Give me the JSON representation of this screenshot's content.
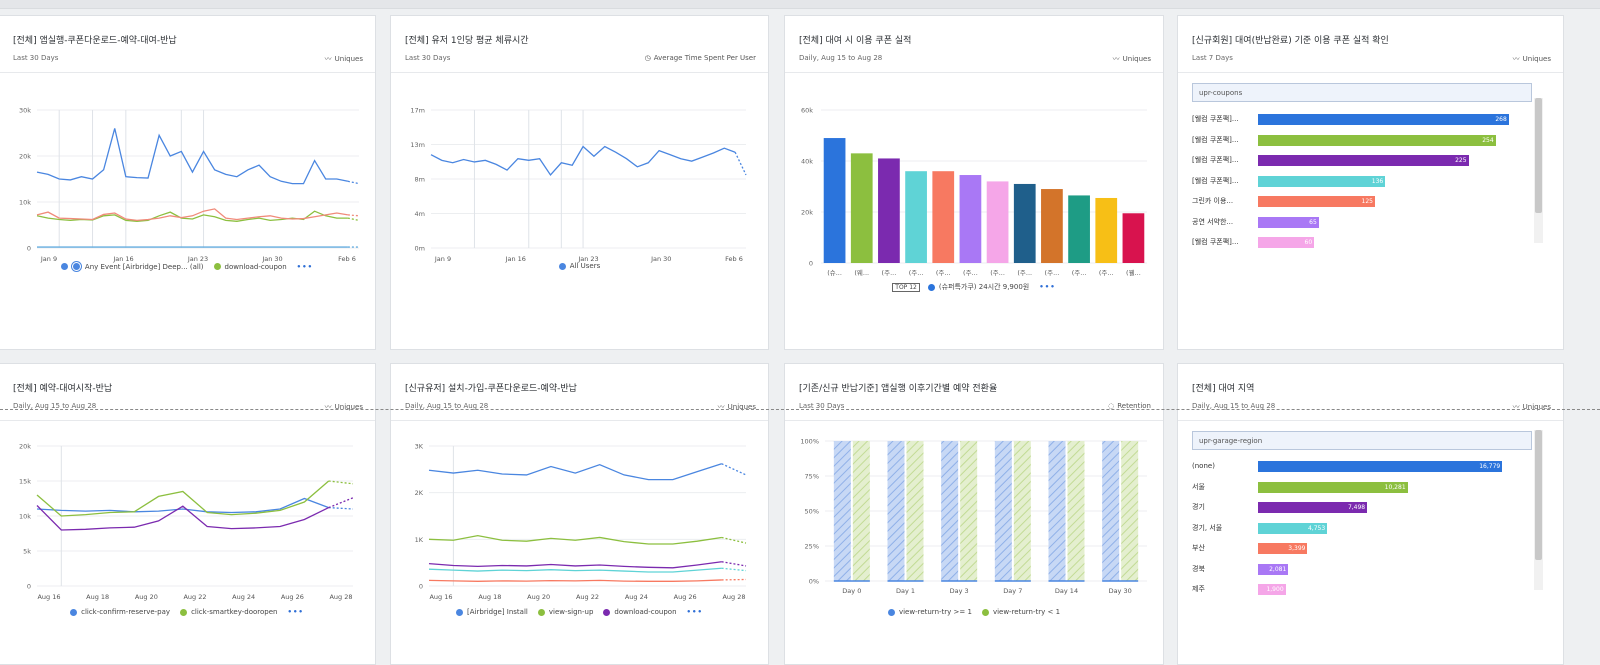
{
  "cards": [
    {
      "title": "[전체] 앱실행-쿠폰다운로드-예약-대여-반납",
      "subtitle": "Last 30 Days",
      "metric": "Uniques",
      "chart_data": {
        "type": "line",
        "x_ticks": [
          "Jan 9",
          "Jan 16",
          "Jan 23",
          "Jan 30",
          "Feb 6"
        ],
        "y_ticks": [
          "0",
          "10k",
          "20k",
          "30k"
        ],
        "ylim": [
          0,
          30000
        ],
        "series": [
          {
            "name": "Any Event [Airbridge] Deep... (all)",
            "color": "#4a86e0",
            "values": [
              16500,
              16000,
              15000,
              14800,
              15500,
              15000,
              17000,
              26000,
              15500,
              15300,
              15200,
              24500,
              20000,
              21000,
              16500,
              21000,
              17000,
              16000,
              15500,
              17000,
              18000,
              15500,
              14500,
              14000,
              14000,
              19000,
              15000,
              15000,
              14500,
              14000
            ]
          },
          {
            "name": "download-coupon",
            "color": "#8cbf3f",
            "values": [
              7000,
              6500,
              6200,
              6000,
              6200,
              6100,
              7000,
              7200,
              6000,
              5800,
              6000,
              7000,
              7800,
              6500,
              6300,
              7200,
              6800,
              6000,
              5800,
              6200,
              6500,
              6000,
              6200,
              6500,
              6200,
              8000,
              7000,
              6500,
              6500,
              6000
            ]
          },
          {
            "name": "",
            "color": "#f08a7a",
            "values": [
              7200,
              7800,
              6500,
              6400,
              6300,
              6200,
              7300,
              7600,
              6300,
              6000,
              6200,
              6500,
              7000,
              6600,
              7000,
              8000,
              8500,
              6500,
              6200,
              6500,
              6800,
              7000,
              6500,
              6300,
              6400,
              6800,
              7200,
              7600,
              7200,
              7000
            ]
          },
          {
            "name": "",
            "color": "#66aee0",
            "values": [
              200,
              200,
              200,
              200,
              200,
              200,
              200,
              200,
              200,
              200,
              200,
              200,
              200,
              200,
              200,
              200,
              200,
              200,
              200,
              200,
              200,
              200,
              200,
              200,
              200,
              200,
              200,
              200,
              200,
              200
            ]
          }
        ],
        "vlines": [
          2,
          5,
          8,
          13,
          15
        ]
      }
    },
    {
      "title": "[전체] 유저 1인당 평균 체류시간",
      "subtitle": "Last 30 Days",
      "metric": "Average Time Spent Per User",
      "chart_data": {
        "type": "line",
        "x_ticks": [
          "Jan 9",
          "Jan 16",
          "Jan 23",
          "Jan 30",
          "Feb 6"
        ],
        "y_ticks": [
          "0m",
          "4m",
          "8m",
          "13m",
          "17m"
        ],
        "ylim": [
          0,
          17
        ],
        "series": [
          {
            "name": "All Users",
            "color": "#4a86e0",
            "values": [
              11.5,
              10.8,
              10.5,
              10.9,
              10.6,
              10.8,
              10.3,
              9.6,
              11,
              10.8,
              11,
              9,
              10.5,
              10.2,
              12.5,
              11.3,
              12.5,
              11.8,
              11,
              10,
              10.5,
              12,
              11.5,
              11,
              10.7,
              11.2,
              11.7,
              12.3,
              11.8,
              9
            ]
          }
        ],
        "vlines": [
          4,
          9,
          12,
          14
        ]
      },
      "legend": [
        "All Users"
      ]
    },
    {
      "title": "[전체] 대여 시 이용 쿠폰 실적",
      "subtitle": "Daily, Aug 15 to Aug 28",
      "metric": "Uniques",
      "chart_data": {
        "type": "bar",
        "y_ticks": [
          "0",
          "20k",
          "40k",
          "60k"
        ],
        "ylim": [
          0,
          60000
        ],
        "categories": [
          "(슈...",
          "(웨...",
          "(주...",
          "(주...",
          "(주...",
          "(주...",
          "(주...",
          "(주...",
          "(주...",
          "(주...",
          "(주...",
          "(웰..."
        ],
        "values": [
          49000,
          43000,
          41000,
          36000,
          36000,
          34500,
          32000,
          31000,
          29000,
          26500,
          25500,
          19500
        ],
        "colors": [
          "#2b74dc",
          "#8cbf3f",
          "#7b2aaf",
          "#5fd3d6",
          "#f77961",
          "#a978f5",
          "#f5a6e8",
          "#1f5f8b",
          "#d3742a",
          "#1e9c85",
          "#f7bf16",
          "#d8134e"
        ]
      },
      "legend_topn": "TOP 12",
      "legend_item": "(슈퍼특가쿠) 24시간 9,900원"
    },
    {
      "title": "[신규회원] 대여(반납완료) 기준 이용 쿠폰 실적 확인",
      "subtitle": "Last 7 Days",
      "metric": "Uniques",
      "filter": "upr-coupons",
      "chart_data": {
        "type": "bar",
        "orientation": "horizontal",
        "categories": [
          "[웰컴 쿠폰팩]...",
          "[웰컴 쿠폰팩]...",
          "[웰컴 쿠폰팩]...",
          "[웰컴 쿠폰팩]...",
          "그린카 이용...",
          "공연 서약한...",
          "[웰컴 쿠폰팩]..."
        ],
        "values": [
          268,
          254,
          225,
          136,
          125,
          65,
          60
        ],
        "labels": [
          "268",
          "254",
          "225",
          "136",
          "125",
          "65",
          "60"
        ],
        "colors": [
          "#2b74dc",
          "#8cbf3f",
          "#7b2aaf",
          "#5fd3d6",
          "#f77961",
          "#a978f5",
          "#f5a6e8"
        ],
        "max": 280
      }
    },
    {
      "title": "[전체] 예약-대여시작-반납",
      "subtitle": "Daily, Aug 15 to Aug 28",
      "metric": "Uniques",
      "chart_data": {
        "type": "line",
        "x_ticks": [
          "Aug 16",
          "Aug 18",
          "Aug 20",
          "Aug 22",
          "Aug 24",
          "Aug 26",
          "Aug 28"
        ],
        "y_ticks": [
          "0",
          "5k",
          "10k",
          "15k",
          "20k"
        ],
        "ylim": [
          0,
          20000
        ],
        "series": [
          {
            "name": "click-confirm-reserve-pay",
            "color": "#4a86e0",
            "values": [
              11000,
              10800,
              10700,
              10800,
              10600,
              10700,
              11000,
              10600,
              10500,
              10600,
              11000,
              12500,
              11200,
              11000
            ]
          },
          {
            "name": "click-smartkey-dooropen",
            "color": "#8cbf3f",
            "values": [
              13000,
              10000,
              10200,
              10500,
              10600,
              12800,
              13500,
              10500,
              10200,
              10400,
              10800,
              12000,
              15000,
              14600
            ]
          },
          {
            "name": "",
            "color": "#7b2aaf",
            "values": [
              11500,
              8000,
              8100,
              8300,
              8400,
              9300,
              11400,
              8500,
              8200,
              8300,
              8500,
              9500,
              11200,
              12600
            ]
          }
        ],
        "vlines": [
          1
        ]
      },
      "legend": [
        "click-confirm-reserve-pay",
        "click-smartkey-dooropen"
      ]
    },
    {
      "title": "[신규유저] 설치-가입-쿠폰다운로드-예약-반납",
      "subtitle": "Daily, Aug 15 to Aug 28",
      "metric": "Uniques",
      "chart_data": {
        "type": "line",
        "x_ticks": [
          "Aug 16",
          "Aug 18",
          "Aug 20",
          "Aug 22",
          "Aug 24",
          "Aug 26",
          "Aug 28"
        ],
        "y_ticks": [
          "0",
          "1K",
          "2K",
          "3K"
        ],
        "ylim": [
          0,
          3000
        ],
        "series": [
          {
            "name": "[Airbridge] Install",
            "color": "#4a86e0",
            "values": [
              2480,
              2420,
              2480,
              2400,
              2380,
              2560,
              2420,
              2600,
              2380,
              2280,
              2280,
              2450,
              2620,
              2380
            ]
          },
          {
            "name": "view-sign-up",
            "color": "#8cbf3f",
            "values": [
              1000,
              980,
              1080,
              980,
              960,
              1020,
              980,
              1040,
              950,
              900,
              900,
              960,
              1040,
              920
            ]
          },
          {
            "name": "download-coupon",
            "color": "#7b2aaf",
            "values": [
              480,
              440,
              420,
              440,
              430,
              460,
              430,
              450,
              420,
              400,
              390,
              450,
              520,
              430
            ]
          },
          {
            "name": "",
            "color": "#5fd3d6",
            "values": [
              360,
              340,
              320,
              340,
              330,
              350,
              330,
              340,
              320,
              300,
              300,
              340,
              380,
              330
            ]
          },
          {
            "name": "",
            "color": "#f77961",
            "values": [
              120,
              110,
              100,
              110,
              105,
              115,
              110,
              120,
              105,
              100,
              100,
              110,
              130,
              140
            ]
          }
        ],
        "vlines": [
          1
        ]
      },
      "legend": [
        "[Airbridge] Install",
        "view-sign-up",
        "download-coupon"
      ]
    },
    {
      "title": "[기존/신규 반납기준] 앱실행 이후기간별 예약 전환율",
      "subtitle": "Last 30 Days",
      "metric": "Retention",
      "chart_data": {
        "type": "bar",
        "stacked": true,
        "y_ticks": [
          "0%",
          "25%",
          "50%",
          "75%",
          "100%"
        ],
        "categories": [
          "Day 0",
          "Day 1",
          "Day 3",
          "Day 7",
          "Day 14",
          "Day 30"
        ],
        "series": [
          {
            "name": "view-return-try >= 1",
            "color": "#4a86e0",
            "values": [
              100,
              100,
              100,
              100,
              100,
              100
            ]
          },
          {
            "name": "view-return-try < 1",
            "color": "#8cbf3f",
            "values": [
              100,
              100,
              100,
              100,
              100,
              100
            ]
          }
        ]
      },
      "legend": [
        "view-return-try >= 1",
        "view-return-try < 1"
      ]
    },
    {
      "title": "[전체] 대여 지역",
      "subtitle": "Daily, Aug 15 to Aug 28",
      "metric": "Uniques",
      "filter": "upr-garage-region",
      "chart_data": {
        "type": "bar",
        "orientation": "horizontal",
        "categories": [
          "(none)",
          "서울",
          "경기",
          "경기, 서울",
          "부산",
          "경북",
          "제주"
        ],
        "values": [
          16779,
          10281,
          7498,
          4753,
          3399,
          2081,
          1900
        ],
        "labels": [
          "16,779",
          "10,281",
          "7,498",
          "4,753",
          "3,399",
          "2,081",
          "1,900"
        ],
        "colors": [
          "#2b74dc",
          "#8cbf3f",
          "#7b2aaf",
          "#5fd3d6",
          "#f77961",
          "#a978f5",
          "#f5a6e8"
        ],
        "max": 18000
      }
    }
  ],
  "legend_more": "•••"
}
